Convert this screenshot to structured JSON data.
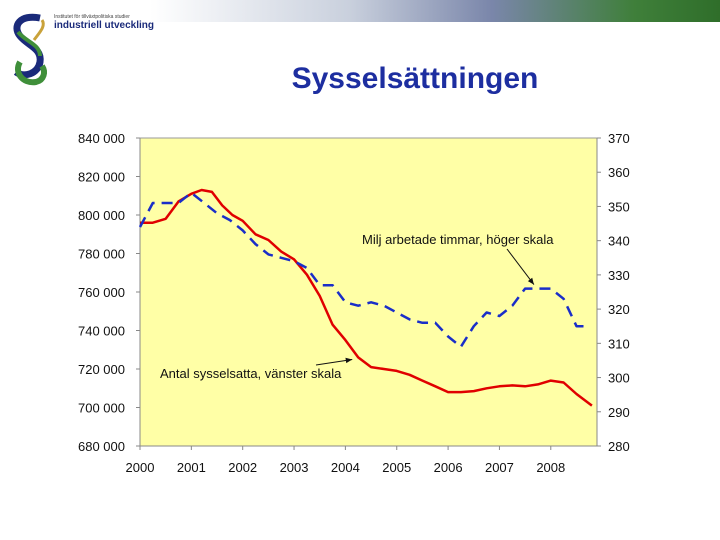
{
  "header": {
    "logo_subtitle": "Institutet för tillväxtpolitiska studier",
    "logo_text": "industriell utveckling",
    "title": "Sysselsättningen"
  },
  "colors": {
    "plot_background": "#ffffa6",
    "employment_line": "#e00000",
    "hours_line": "#1a2ec8",
    "title": "#1d2ea0"
  },
  "chart_data": {
    "type": "line",
    "title": "",
    "xlabel": "",
    "ylabel": "",
    "xlim": [
      2000,
      2008.9
    ],
    "ylim_left": [
      680000,
      840000
    ],
    "ylim_right": [
      280,
      370
    ],
    "x_ticks": [
      "2000",
      "2001",
      "2002",
      "2003",
      "2004",
      "2005",
      "2006",
      "2007",
      "2008"
    ],
    "y_left_ticks": [
      "840 000",
      "820 000",
      "800 000",
      "780 000",
      "760 000",
      "740 000",
      "720 000",
      "700 000",
      "680 000"
    ],
    "y_right_ticks": [
      "370",
      "360",
      "350",
      "340",
      "330",
      "320",
      "310",
      "300",
      "290",
      "280"
    ],
    "grid": false,
    "series": [
      {
        "name": "Antal sysselsatta, vänster skala",
        "axis": "left",
        "style": "solid",
        "x": [
          2000.0,
          2000.25,
          2000.5,
          2000.75,
          2001.0,
          2001.2,
          2001.4,
          2001.6,
          2001.8,
          2002.0,
          2002.25,
          2002.5,
          2002.75,
          2003.0,
          2003.25,
          2003.5,
          2003.75,
          2004.0,
          2004.25,
          2004.5,
          2004.75,
          2005.0,
          2005.25,
          2005.5,
          2005.75,
          2006.0,
          2006.25,
          2006.5,
          2006.75,
          2007.0,
          2007.25,
          2007.5,
          2007.75,
          2008.0,
          2008.25,
          2008.5,
          2008.8
        ],
        "y": [
          796000,
          796000,
          798000,
          807000,
          811000,
          813000,
          812000,
          805000,
          800000,
          797000,
          790000,
          787000,
          781000,
          777000,
          769000,
          758000,
          743000,
          735000,
          726000,
          721000,
          720000,
          719000,
          717000,
          714000,
          711000,
          708000,
          708000,
          708500,
          710000,
          711000,
          711500,
          711000,
          712000,
          714000,
          713000,
          707000,
          701000
        ]
      },
      {
        "name": "Milj arbetade timmar, höger skala",
        "axis": "right",
        "style": "dashed",
        "x": [
          2000.0,
          2000.25,
          2000.5,
          2000.75,
          2001.0,
          2001.25,
          2001.5,
          2001.75,
          2002.0,
          2002.25,
          2002.5,
          2002.75,
          2003.0,
          2003.25,
          2003.5,
          2003.75,
          2004.0,
          2004.25,
          2004.5,
          2004.75,
          2005.0,
          2005.25,
          2005.5,
          2005.75,
          2006.0,
          2006.25,
          2006.5,
          2006.75,
          2007.0,
          2007.25,
          2007.5,
          2007.75,
          2008.0,
          2008.25,
          2008.5,
          2008.75
        ],
        "y": [
          344,
          351,
          351,
          351,
          354,
          351,
          348,
          346,
          343,
          339,
          336,
          335,
          334,
          332,
          327,
          327,
          322,
          321,
          322,
          321,
          319,
          317,
          316,
          316,
          312,
          309,
          315,
          319,
          318,
          321,
          326,
          326,
          326,
          323,
          315,
          315
        ]
      }
    ],
    "annotations": [
      {
        "text": "Milj arbetade timmar, höger skala",
        "series": "Milj arbetade timmar, höger skala"
      },
      {
        "text": "Antal sysselsatta, vänster skala",
        "series": "Antal sysselsatta, vänster skala"
      }
    ]
  }
}
